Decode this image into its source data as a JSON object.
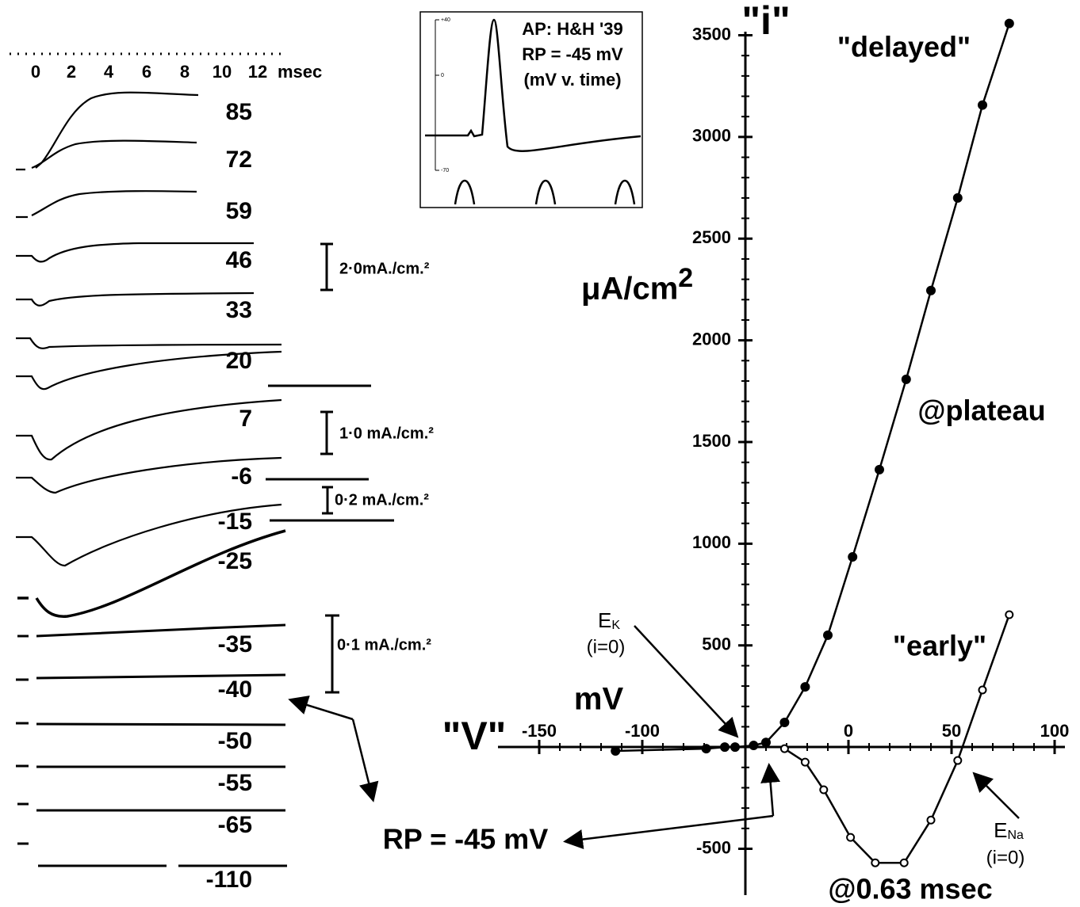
{
  "chart_data": {
    "type": "line",
    "y_name": "\"i\"",
    "y_label": "μA/cm",
    "y_label_sup": "2",
    "x_name": "\"V\"",
    "x_label": "mV",
    "xlim": [
      -170,
      105
    ],
    "xticks": [
      -150,
      -100,
      0,
      50,
      100
    ],
    "ylim": [
      -650,
      3650
    ],
    "yticks": [
      -500,
      500,
      1000,
      1500,
      2000,
      2500,
      3000,
      3500
    ],
    "series": [
      {
        "name": "\"delayed\"",
        "color": "#000000",
        "filled": true,
        "x": [
          -113,
          -69,
          -60,
          -55,
          -46,
          -40,
          -31,
          -21,
          -10,
          2,
          15,
          28,
          40,
          53,
          65,
          78
        ],
        "values": [
          -19,
          -8,
          0,
          0,
          8,
          23,
          121,
          296,
          550,
          935,
          1364,
          1808,
          2245,
          2700,
          3157,
          3558
        ]
      },
      {
        "name": "\"early\"",
        "color": "#000000",
        "filled": false,
        "x": [
          -31,
          -21,
          -12,
          1,
          13,
          27,
          40,
          53,
          65,
          78
        ],
        "values": [
          -8,
          -74,
          -210,
          -444,
          -569,
          -569,
          -359,
          -66,
          281,
          651
        ]
      }
    ],
    "annotations": {
      "delayed_note": "@plateau",
      "early_note": "@0.63 msec",
      "ek": {
        "symbol": "E",
        "sub": "K",
        "note": "(i=0)"
      },
      "ena": {
        "symbol": "E",
        "sub": "Na",
        "note": "(i=0)"
      },
      "rp": "RP = -45 mV"
    }
  },
  "traces": {
    "time_ticks": [
      "0",
      "2",
      "4",
      "6",
      "8",
      "10",
      "12"
    ],
    "time_unit": "msec",
    "labels": [
      "85",
      "72",
      "59",
      "46",
      "33",
      "20",
      "7",
      "-6",
      "-15",
      "-25",
      "-35",
      "-40",
      "-50",
      "-55",
      "-65",
      "-110"
    ],
    "scale_bars": [
      "2·0mA./cm.²",
      "1·0 mA./cm.²",
      "0·2 mA./cm.²",
      "0·1 mA./cm.²"
    ]
  },
  "inset": {
    "lines": [
      "AP: H&H '39",
      "RP = -45 mV",
      "(mV v. time)"
    ],
    "ticks": [
      "+40",
      "0",
      "-70"
    ]
  }
}
